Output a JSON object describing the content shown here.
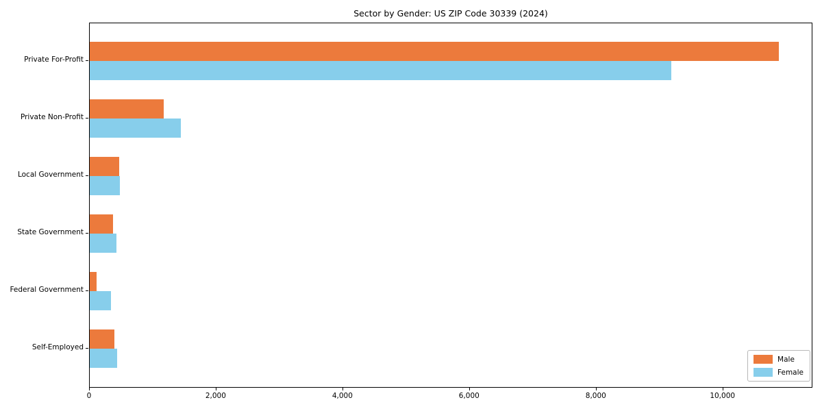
{
  "title": "Sector by Gender: US ZIP Code 30339 (2024)",
  "colors": {
    "male": "#EC7A3C",
    "female": "#87CEEB",
    "axis": "#000000"
  },
  "legend": {
    "items": [
      {
        "label": "Male",
        "color": "#EC7A3C"
      },
      {
        "label": "Female",
        "color": "#87CEEB"
      }
    ]
  },
  "chart_data": {
    "type": "bar",
    "orientation": "horizontal",
    "title": "Sector by Gender: US ZIP Code 30339 (2024)",
    "categories": [
      "Private For-Profit",
      "Private Non-Profit",
      "Local Government",
      "State Government",
      "Federal Government",
      "Self-Employed"
    ],
    "series": [
      {
        "name": "Male",
        "color": "#EC7A3C",
        "values": [
          10876,
          1167,
          466,
          368,
          110,
          389
        ]
      },
      {
        "name": "Female",
        "color": "#87CEEB",
        "values": [
          9178,
          1438,
          475,
          421,
          335,
          432
        ]
      }
    ],
    "xlabel": "",
    "ylabel": "",
    "xlim": [
      0,
      11420
    ],
    "x_ticks": [
      {
        "value": 0,
        "label": "0"
      },
      {
        "value": 2000,
        "label": "2,000"
      },
      {
        "value": 4000,
        "label": "4,000"
      },
      {
        "value": 6000,
        "label": "6,000"
      },
      {
        "value": 8000,
        "label": "8,000"
      },
      {
        "value": 10000,
        "label": "10,000"
      }
    ],
    "grid": false,
    "legend_position": "lower right"
  }
}
